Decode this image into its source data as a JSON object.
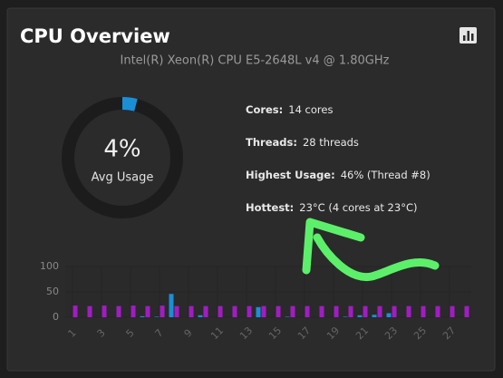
{
  "header": {
    "title": "CPU Overview",
    "subtitle": "Intel(R) Xeon(R) CPU E5-2648L v4 @ 1.80GHz"
  },
  "stats": [
    {
      "label": "Cores:",
      "value": "14 cores"
    },
    {
      "label": "Threads:",
      "value": "28 threads"
    },
    {
      "label": "Highest Usage:",
      "value": "46% (Thread #8)"
    },
    {
      "label": "Hottest:",
      "value": "23°C (4 cores at 23°C)"
    }
  ],
  "chart_data": [
    {
      "type": "gauge",
      "values": [
        4
      ],
      "value_labels": [
        "4%"
      ],
      "label": "Avg Usage",
      "ylim": [
        0,
        100
      ],
      "color": "#1a8fd6",
      "track_color": "#1c1c1c"
    },
    {
      "type": "bar",
      "categories": [
        1,
        null,
        3,
        null,
        5,
        null,
        7,
        null,
        9,
        null,
        11,
        null,
        13,
        null,
        15,
        null,
        17,
        null,
        19,
        null,
        21,
        null,
        23,
        null,
        25,
        null,
        27,
        null
      ],
      "series": [
        {
          "color": "#1a8fd6",
          "values": [
            0,
            0,
            0,
            0,
            0,
            2,
            1,
            46,
            0,
            4,
            0,
            0,
            0,
            20,
            0,
            1,
            0,
            0,
            0,
            1,
            4,
            5,
            8,
            0,
            0,
            0,
            0,
            0
          ]
        },
        {
          "color": "#a21cc4",
          "values": [
            23,
            22,
            23,
            22,
            23,
            22,
            23,
            22,
            22,
            22,
            22,
            22,
            22,
            22,
            22,
            22,
            22,
            22,
            22,
            22,
            22,
            22,
            22,
            22,
            22,
            22,
            22,
            22
          ]
        }
      ],
      "ylim": [
        0,
        100
      ],
      "yticks": [
        0,
        50,
        100
      ],
      "grid": true
    }
  ]
}
